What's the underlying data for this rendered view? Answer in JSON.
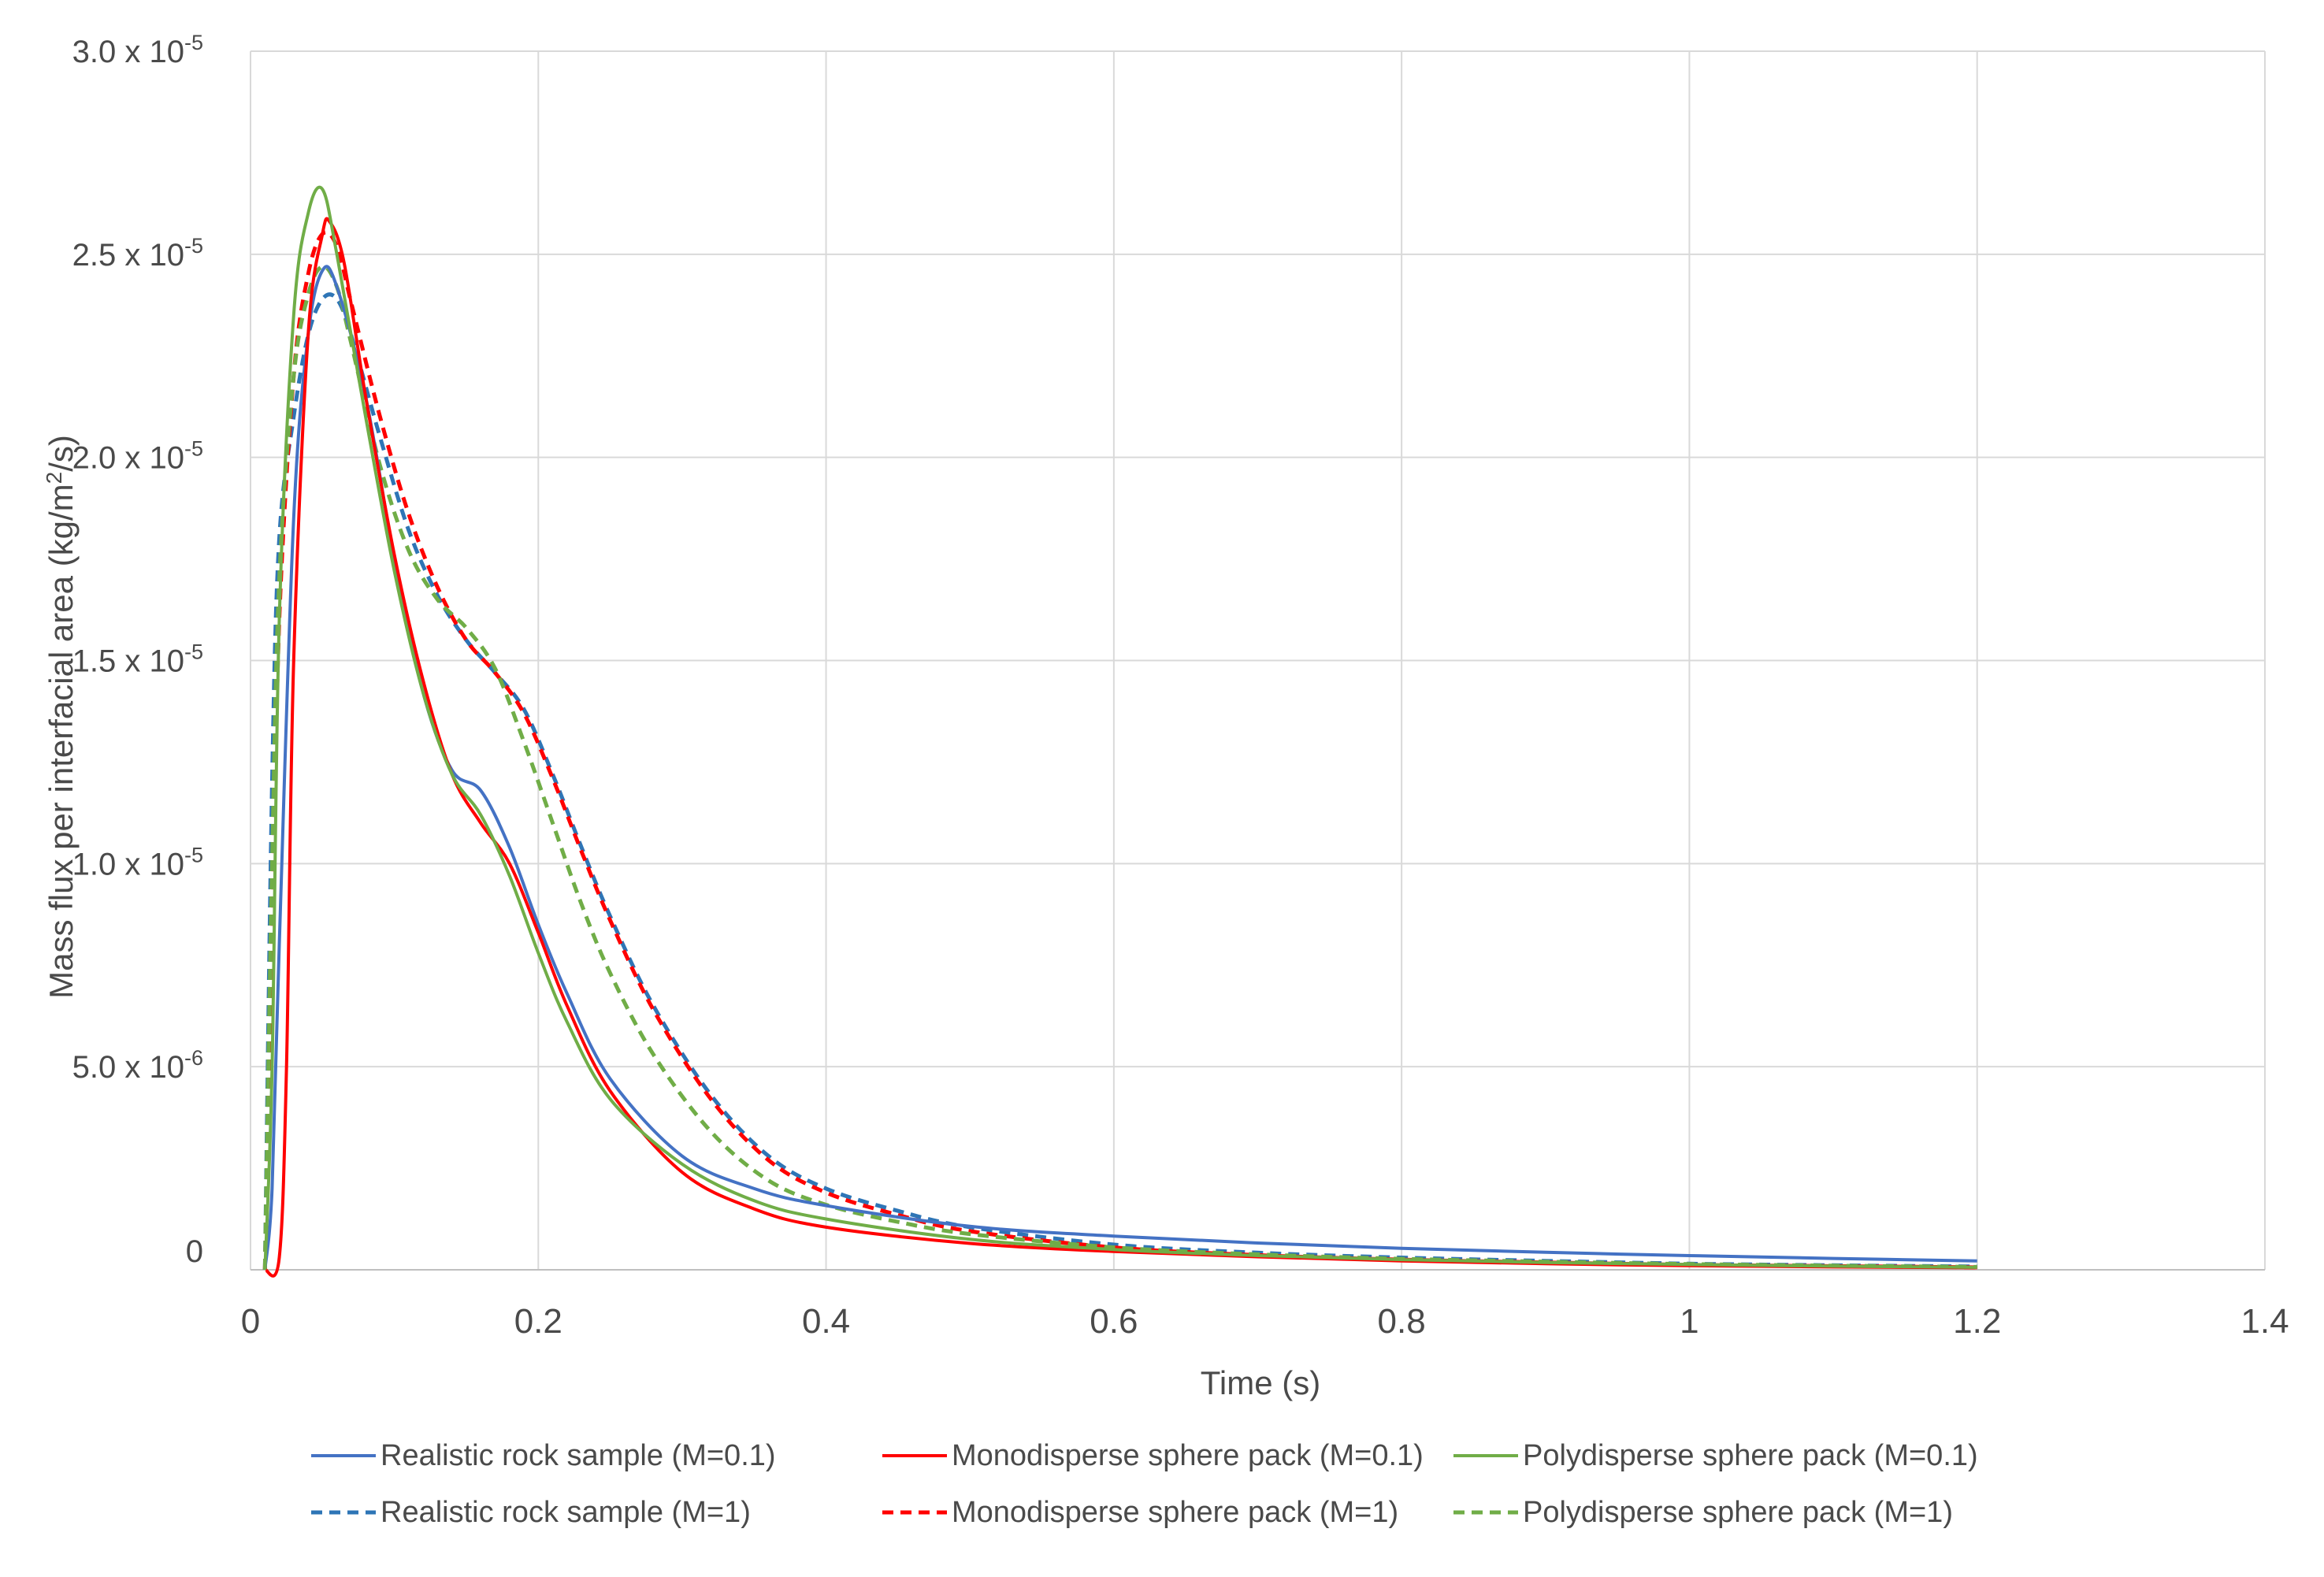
{
  "chart_data": {
    "type": "line",
    "title": "",
    "xlabel": "Time (s)",
    "ylabel": {
      "text": "Mass flux per interfacial area (kg/m",
      "sup": "2",
      "tail": "/s)"
    },
    "xlim": [
      0,
      1.4
    ],
    "ylim": [
      0,
      3e-05
    ],
    "grid": true,
    "legend_position": "bottom",
    "x_ticks": [
      {
        "value": 0,
        "label": "0"
      },
      {
        "value": 0.2,
        "label": "0.2"
      },
      {
        "value": 0.4,
        "label": "0.4"
      },
      {
        "value": 0.6,
        "label": "0.6"
      },
      {
        "value": 0.8,
        "label": "0.8"
      },
      {
        "value": 1.0,
        "label": "1"
      },
      {
        "value": 1.2,
        "label": "1.2"
      },
      {
        "value": 1.4,
        "label": "1.4"
      }
    ],
    "y_ticks": [
      {
        "value": 0,
        "mantissa": "0",
        "exp": ""
      },
      {
        "value": 5e-06,
        "mantissa": "5.0 x 10",
        "exp": "-6"
      },
      {
        "value": 1e-05,
        "mantissa": "1.0 x 10",
        "exp": "-5"
      },
      {
        "value": 1.5e-05,
        "mantissa": "1.5 x 10",
        "exp": "-5"
      },
      {
        "value": 2e-05,
        "mantissa": "2.0 x 10",
        "exp": "-5"
      },
      {
        "value": 2.5e-05,
        "mantissa": "2.5 x 10",
        "exp": "-5"
      },
      {
        "value": 3e-05,
        "mantissa": "3.0 x 10",
        "exp": "-5"
      }
    ],
    "series": [
      {
        "name": "Realistic rock sample (M=0.1)",
        "color": "#4472C4",
        "dash": "solid",
        "points": [
          [
            0.01,
            0
          ],
          [
            0.015,
            2e-06
          ],
          [
            0.02,
            8e-06
          ],
          [
            0.03,
            1.85e-05
          ],
          [
            0.04,
            2.3e-05
          ],
          [
            0.05,
            2.46e-05
          ],
          [
            0.06,
            2.42e-05
          ],
          [
            0.08,
            2.15e-05
          ],
          [
            0.1,
            1.75e-05
          ],
          [
            0.12,
            1.42e-05
          ],
          [
            0.14,
            1.23e-05
          ],
          [
            0.16,
            1.18e-05
          ],
          [
            0.18,
            1.04e-05
          ],
          [
            0.2,
            8.5e-06
          ],
          [
            0.22,
            6.8e-06
          ],
          [
            0.25,
            4.7e-06
          ],
          [
            0.3,
            2.8e-06
          ],
          [
            0.35,
            2e-06
          ],
          [
            0.4,
            1.58e-06
          ],
          [
            0.5,
            1.07e-06
          ],
          [
            0.6,
            8.3e-07
          ],
          [
            0.7,
            6.6e-07
          ],
          [
            0.8,
            5.3e-07
          ],
          [
            0.9,
            4.3e-07
          ],
          [
            1.0,
            3.5e-07
          ],
          [
            1.1,
            2.8e-07
          ],
          [
            1.2,
            2.2e-07
          ]
        ]
      },
      {
        "name": "Monodisperse sphere pack (M=0.1)",
        "color": "#FF0000",
        "dash": "solid",
        "points": [
          [
            0.01,
            0
          ],
          [
            0.02,
            3e-07
          ],
          [
            0.025,
            5e-06
          ],
          [
            0.03,
            1.5e-05
          ],
          [
            0.04,
            2.3e-05
          ],
          [
            0.05,
            2.55e-05
          ],
          [
            0.055,
            2.58e-05
          ],
          [
            0.065,
            2.48e-05
          ],
          [
            0.08,
            2.15e-05
          ],
          [
            0.1,
            1.76e-05
          ],
          [
            0.12,
            1.45e-05
          ],
          [
            0.14,
            1.22e-05
          ],
          [
            0.16,
            1.1e-05
          ],
          [
            0.18,
            1e-05
          ],
          [
            0.2,
            8.3e-06
          ],
          [
            0.22,
            6.5e-06
          ],
          [
            0.25,
            4.4e-06
          ],
          [
            0.3,
            2.4e-06
          ],
          [
            0.35,
            1.5e-06
          ],
          [
            0.4,
            1.05e-06
          ],
          [
            0.5,
            6.5e-07
          ],
          [
            0.6,
            4.5e-07
          ],
          [
            0.7,
            3.2e-07
          ],
          [
            0.8,
            2.2e-07
          ],
          [
            0.9,
            1.5e-07
          ],
          [
            1.0,
            1e-07
          ],
          [
            1.1,
            7e-08
          ],
          [
            1.2,
            5e-08
          ]
        ]
      },
      {
        "name": "Polydisperse sphere pack (M=0.1)",
        "color": "#70AD47",
        "dash": "solid",
        "points": [
          [
            0.01,
            0
          ],
          [
            0.015,
            5e-06
          ],
          [
            0.02,
            1.6e-05
          ],
          [
            0.03,
            2.35e-05
          ],
          [
            0.04,
            2.6e-05
          ],
          [
            0.05,
            2.66e-05
          ],
          [
            0.06,
            2.5e-05
          ],
          [
            0.08,
            2.1e-05
          ],
          [
            0.1,
            1.72e-05
          ],
          [
            0.12,
            1.42e-05
          ],
          [
            0.14,
            1.22e-05
          ],
          [
            0.16,
            1.12e-05
          ],
          [
            0.18,
            9.7e-06
          ],
          [
            0.2,
            7.8e-06
          ],
          [
            0.22,
            6.1e-06
          ],
          [
            0.25,
            4.2e-06
          ],
          [
            0.3,
            2.6e-06
          ],
          [
            0.35,
            1.7e-06
          ],
          [
            0.4,
            1.25e-06
          ],
          [
            0.5,
            7.5e-07
          ],
          [
            0.6,
            5e-07
          ],
          [
            0.7,
            3.5e-07
          ],
          [
            0.8,
            2.5e-07
          ],
          [
            0.9,
            1.8e-07
          ],
          [
            1.0,
            1.3e-07
          ],
          [
            1.1,
            9e-08
          ],
          [
            1.2,
            6e-08
          ]
        ]
      },
      {
        "name": "Realistic rock sample (M=1)",
        "color": "#2E75B6",
        "dash": "dashed",
        "points": [
          [
            0.01,
            0
          ],
          [
            0.015,
            1.2e-05
          ],
          [
            0.02,
            1.8e-05
          ],
          [
            0.03,
            2.1e-05
          ],
          [
            0.04,
            2.3e-05
          ],
          [
            0.05,
            2.39e-05
          ],
          [
            0.06,
            2.39e-05
          ],
          [
            0.07,
            2.3e-05
          ],
          [
            0.09,
            2.05e-05
          ],
          [
            0.11,
            1.82e-05
          ],
          [
            0.13,
            1.66e-05
          ],
          [
            0.15,
            1.55e-05
          ],
          [
            0.17,
            1.47e-05
          ],
          [
            0.19,
            1.38e-05
          ],
          [
            0.21,
            1.22e-05
          ],
          [
            0.23,
            1.04e-05
          ],
          [
            0.25,
            8.7e-06
          ],
          [
            0.28,
            6.5e-06
          ],
          [
            0.32,
            4.3e-06
          ],
          [
            0.36,
            2.8e-06
          ],
          [
            0.4,
            2e-06
          ],
          [
            0.45,
            1.45e-06
          ],
          [
            0.5,
            1.05e-06
          ],
          [
            0.6,
            6.2e-07
          ],
          [
            0.7,
            4.2e-07
          ],
          [
            0.8,
            3e-07
          ],
          [
            0.9,
            2.2e-07
          ],
          [
            1.0,
            1.5e-07
          ],
          [
            1.1,
            1.1e-07
          ],
          [
            1.2,
            8e-08
          ]
        ]
      },
      {
        "name": "Monodisperse sphere pack (M=1)",
        "color": "#FF0000",
        "dash": "dashed",
        "points": [
          [
            0.01,
            0
          ],
          [
            0.015,
            8e-06
          ],
          [
            0.02,
            1.6e-05
          ],
          [
            0.03,
            2.2e-05
          ],
          [
            0.04,
            2.45e-05
          ],
          [
            0.05,
            2.55e-05
          ],
          [
            0.06,
            2.52e-05
          ],
          [
            0.07,
            2.38e-05
          ],
          [
            0.09,
            2.1e-05
          ],
          [
            0.11,
            1.86e-05
          ],
          [
            0.13,
            1.68e-05
          ],
          [
            0.15,
            1.55e-05
          ],
          [
            0.17,
            1.47e-05
          ],
          [
            0.19,
            1.37e-05
          ],
          [
            0.21,
            1.21e-05
          ],
          [
            0.23,
            1.03e-05
          ],
          [
            0.25,
            8.6e-06
          ],
          [
            0.28,
            6.4e-06
          ],
          [
            0.32,
            4.2e-06
          ],
          [
            0.36,
            2.7e-06
          ],
          [
            0.4,
            1.9e-06
          ],
          [
            0.45,
            1.35e-06
          ],
          [
            0.5,
            9.5e-07
          ],
          [
            0.6,
            5.5e-07
          ],
          [
            0.7,
            3.6e-07
          ],
          [
            0.8,
            2.5e-07
          ],
          [
            0.9,
            1.8e-07
          ],
          [
            1.0,
            1.2e-07
          ],
          [
            1.1,
            9e-08
          ],
          [
            1.2,
            6e-08
          ]
        ]
      },
      {
        "name": "Polydisperse sphere pack (M=1)",
        "color": "#70AD47",
        "dash": "dashed",
        "points": [
          [
            0.01,
            0
          ],
          [
            0.015,
            1e-05
          ],
          [
            0.02,
            1.7e-05
          ],
          [
            0.03,
            2.2e-05
          ],
          [
            0.04,
            2.4e-05
          ],
          [
            0.05,
            2.47e-05
          ],
          [
            0.06,
            2.42e-05
          ],
          [
            0.07,
            2.28e-05
          ],
          [
            0.09,
            1.98e-05
          ],
          [
            0.11,
            1.77e-05
          ],
          [
            0.13,
            1.65e-05
          ],
          [
            0.15,
            1.58e-05
          ],
          [
            0.17,
            1.48e-05
          ],
          [
            0.19,
            1.3e-05
          ],
          [
            0.21,
            1.1e-05
          ],
          [
            0.23,
            9e-06
          ],
          [
            0.25,
            7.3e-06
          ],
          [
            0.28,
            5.3e-06
          ],
          [
            0.32,
            3.4e-06
          ],
          [
            0.36,
            2.2e-06
          ],
          [
            0.4,
            1.6e-06
          ],
          [
            0.45,
            1.18e-06
          ],
          [
            0.5,
            8.8e-07
          ],
          [
            0.6,
            5.5e-07
          ],
          [
            0.7,
            3.8e-07
          ],
          [
            0.8,
            2.7e-07
          ],
          [
            0.9,
            2e-07
          ],
          [
            1.0,
            1.4e-07
          ],
          [
            1.1,
            1e-07
          ],
          [
            1.2,
            7e-08
          ]
        ]
      }
    ]
  }
}
